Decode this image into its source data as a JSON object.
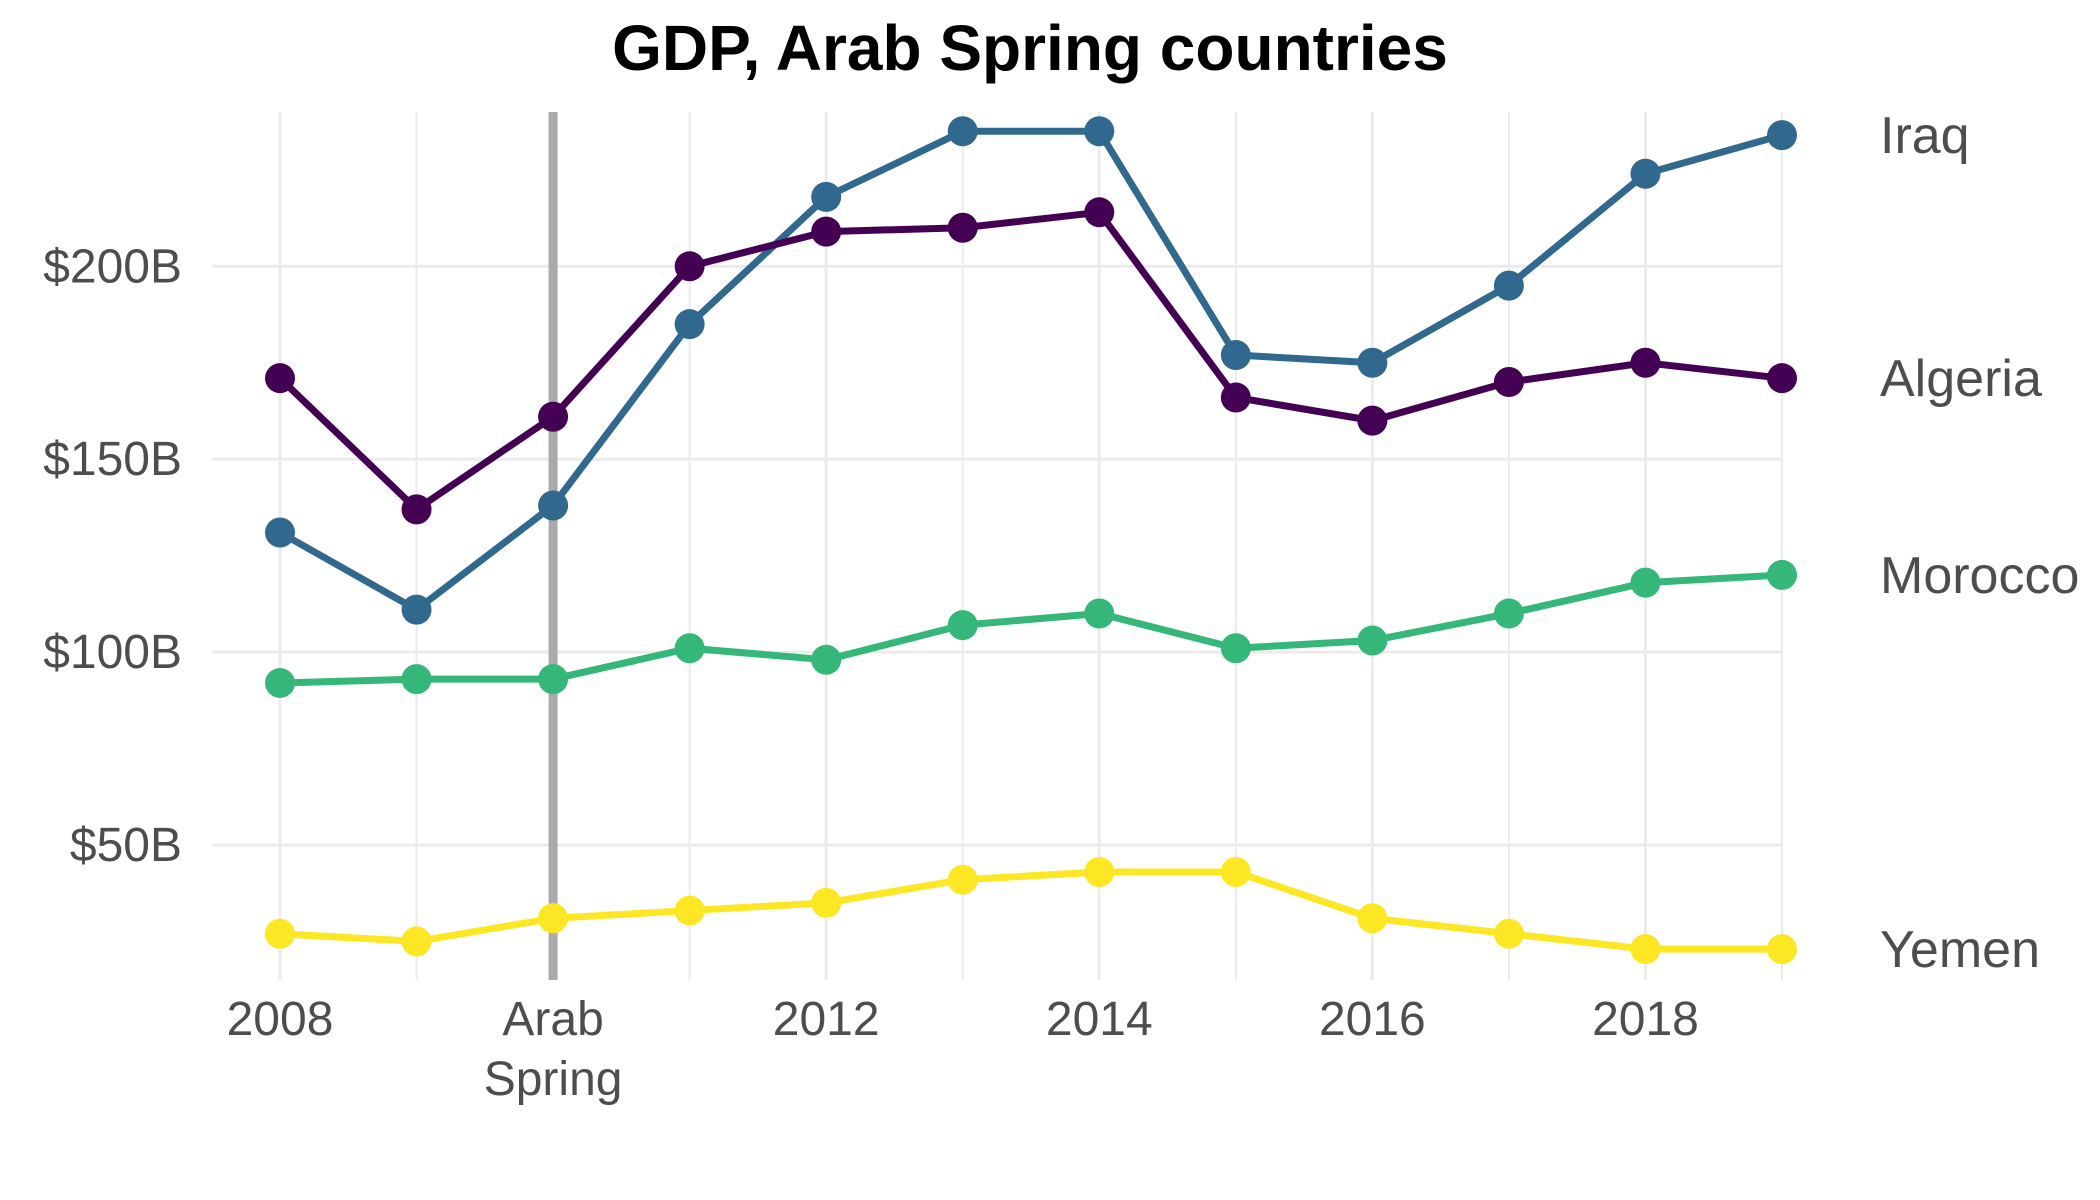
{
  "chart_data": {
    "type": "line",
    "title": "GDP, Arab Spring countries",
    "xlabel": "",
    "ylabel": "",
    "x": [
      2008,
      2009,
      2010,
      2011,
      2012,
      2013,
      2014,
      2015,
      2016,
      2017,
      2018,
      2019
    ],
    "xlim": [
      2008,
      2019
    ],
    "ylim": [
      15,
      240
    ],
    "x_ticks": [
      {
        "value": 2008,
        "label": "2008"
      },
      {
        "value": 2010,
        "label": "Arab\nSpring"
      },
      {
        "value": 2012,
        "label": "2012"
      },
      {
        "value": 2014,
        "label": "2014"
      },
      {
        "value": 2016,
        "label": "2016"
      },
      {
        "value": 2018,
        "label": "2018"
      }
    ],
    "y_ticks": [
      {
        "value": 50,
        "label": "$50B"
      },
      {
        "value": 100,
        "label": "$100B"
      },
      {
        "value": 150,
        "label": "$150B"
      },
      {
        "value": 200,
        "label": "$200B"
      }
    ],
    "grid": true,
    "legend": "direct labels at right end of each line",
    "reference_line": {
      "x": 2010,
      "color": "#aaaaaa"
    },
    "series": [
      {
        "name": "Iraq",
        "color": "#31688e",
        "values": [
          131,
          111,
          138,
          185,
          218,
          235,
          235,
          177,
          175,
          195,
          224,
          234
        ]
      },
      {
        "name": "Algeria",
        "color": "#440154",
        "values": [
          171,
          137,
          161,
          200,
          209,
          210,
          214,
          166,
          160,
          170,
          175,
          171
        ]
      },
      {
        "name": "Morocco",
        "color": "#35b779",
        "values": [
          92,
          93,
          93,
          101,
          98,
          107,
          110,
          101,
          103,
          110,
          118,
          120
        ]
      },
      {
        "name": "Yemen",
        "color": "#fde725",
        "values": [
          27,
          25,
          31,
          33,
          35,
          41,
          43,
          43,
          31,
          27,
          23,
          23
        ]
      }
    ]
  }
}
